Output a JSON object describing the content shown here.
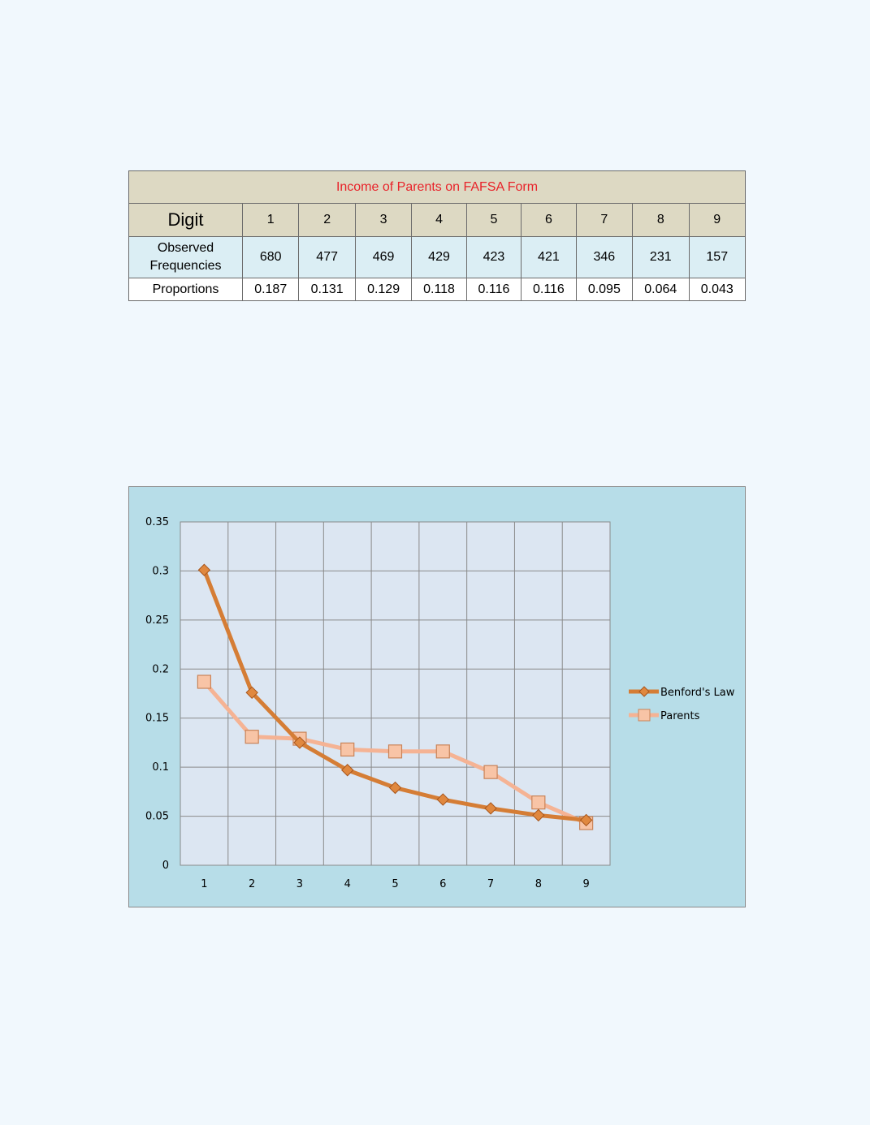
{
  "table": {
    "title": "Income of Parents on FAFSA Form",
    "row_headers": {
      "digit": "Digit",
      "observed_line1": "Observed",
      "observed_line2": "Frequencies",
      "proportions": "Proportions"
    },
    "digits": [
      "1",
      "2",
      "3",
      "4",
      "5",
      "6",
      "7",
      "8",
      "9"
    ],
    "observed": [
      "680",
      "477",
      "469",
      "429",
      "423",
      "421",
      "346",
      "231",
      "157"
    ],
    "proportions": [
      "0.187",
      "0.131",
      "0.129",
      "0.118",
      "0.116",
      "0.116",
      "0.095",
      "0.064",
      "0.043"
    ]
  },
  "chart_data": {
    "type": "line",
    "title": "",
    "xlabel": "",
    "ylabel": "",
    "x": [
      1,
      2,
      3,
      4,
      5,
      6,
      7,
      8,
      9
    ],
    "ylim": [
      0,
      0.35
    ],
    "yticks": [
      0,
      0.05,
      0.1,
      0.15,
      0.2,
      0.25,
      0.3,
      0.35
    ],
    "ytick_labels": [
      "0",
      "0.05",
      "0.1",
      "0.15",
      "0.2",
      "0.25",
      "0.3",
      "0.35"
    ],
    "grid": true,
    "legend_position": "right",
    "series": [
      {
        "name": "Benford's Law",
        "values": [
          0.301,
          0.176,
          0.125,
          0.097,
          0.079,
          0.067,
          0.058,
          0.051,
          0.046
        ],
        "color": "#d57d35",
        "marker": "diamond"
      },
      {
        "name": "Parents",
        "values": [
          0.187,
          0.131,
          0.129,
          0.118,
          0.116,
          0.116,
          0.095,
          0.064,
          0.043
        ],
        "color": "#f5b394",
        "marker": "square"
      }
    ]
  }
}
